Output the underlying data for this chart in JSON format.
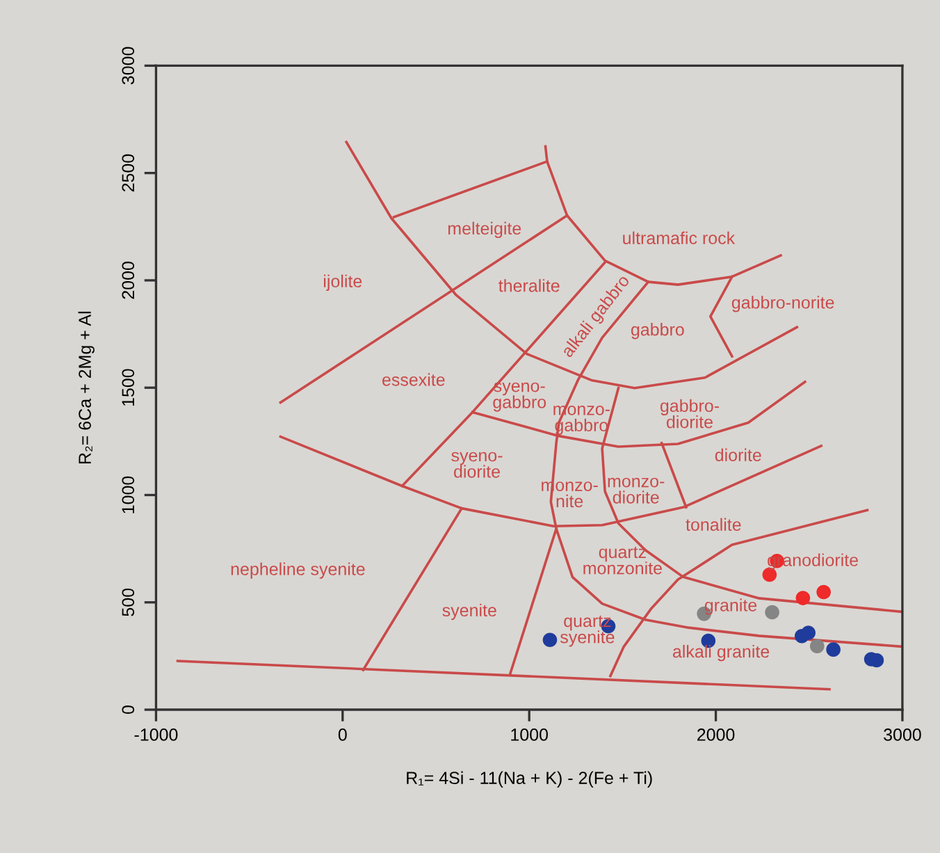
{
  "chart_data": {
    "type": "scatter",
    "xlabel": "R₁= 4Si - 11(Na + K) - 2(Fe + Ti)",
    "ylabel": "R₂= 6Ca + 2Mg + Al",
    "xlim": [
      -1000,
      3000
    ],
    "ylim": [
      0,
      3000
    ],
    "xticks": [
      -1000,
      0,
      1000,
      2000,
      3000
    ],
    "yticks": [
      0,
      500,
      1000,
      1500,
      2000,
      2500,
      3000
    ],
    "grid": false,
    "series": [
      {
        "type": "line",
        "color": "#c94a4a",
        "x": [
          20,
          261,
          609,
          986,
          1333,
          1565,
          1942,
          2435
        ],
        "values": [
          2644,
          2290,
          1931,
          1658,
          1535,
          1498,
          1547,
          1782
        ]
      },
      {
        "type": "line",
        "color": "#c94a4a",
        "x": [
          275,
          1096
        ],
        "values": [
          2295,
          2554
        ]
      },
      {
        "type": "line",
        "color": "#c94a4a",
        "x": [
          1087,
          1096,
          1203,
          1406,
          1638,
          1797,
          2087,
          2348
        ],
        "values": [
          2624,
          2554,
          2302,
          2092,
          1993,
          1980,
          2017,
          2116
        ]
      },
      {
        "type": "line",
        "color": "#c94a4a",
        "x": [
          -333,
          1203
        ],
        "values": [
          1431,
          2302
        ]
      },
      {
        "type": "line",
        "color": "#c94a4a",
        "x": [
          1406,
          696,
          319
        ],
        "values": [
          2084,
          1386,
          1042
        ]
      },
      {
        "type": "line",
        "color": "#c94a4a",
        "x": [
          1638,
          1391,
          1261,
          1159,
          1145,
          1116,
          1145,
          1232,
          1391,
          1623,
          1855,
          2232,
          3000
        ],
        "values": [
          1993,
          1733,
          1535,
          1337,
          1242,
          968,
          843,
          618,
          494,
          419,
          382,
          344,
          294
        ]
      },
      {
        "type": "line",
        "color": "#c94a4a",
        "x": [
          696,
          1159,
          1478,
          1797,
          2174,
          2478
        ],
        "values": [
          1386,
          1275,
          1225,
          1238,
          1337,
          1527
        ]
      },
      {
        "type": "line",
        "color": "#c94a4a",
        "x": [
          1478,
          1391,
          1406,
          1478,
          1623,
          1826,
          2232,
          3000
        ],
        "values": [
          1498,
          1217,
          1017,
          868,
          743,
          618,
          519,
          456
        ]
      },
      {
        "type": "line",
        "color": "#c94a4a",
        "x": [
          -333,
          319,
          638,
          1130,
          1391,
          1826,
          2565
        ],
        "values": [
          1272,
          1042,
          938,
          855,
          860,
          943,
          1229
        ]
      },
      {
        "type": "line",
        "color": "#c94a4a",
        "x": [
          1710,
          1841
        ],
        "values": [
          1242,
          943
        ]
      },
      {
        "type": "line",
        "color": "#c94a4a",
        "x": [
          1435,
          1507,
          1652,
          1797,
          2087,
          2812
        ],
        "values": [
          157,
          294,
          469,
          606,
          768,
          930
        ]
      },
      {
        "type": "line",
        "color": "#c94a4a",
        "x": [
          -884,
          2609
        ],
        "values": [
          227,
          95
        ]
      },
      {
        "type": "line",
        "color": "#c94a4a",
        "x": [
          110,
          638
        ],
        "values": [
          185,
          938
        ]
      },
      {
        "type": "line",
        "color": "#c94a4a",
        "x": [
          899,
          1145
        ],
        "values": [
          170,
          843
        ]
      },
      {
        "type": "line",
        "color": "#c94a4a",
        "x": [
          2087,
          1971,
          2087
        ],
        "values": [
          2017,
          1832,
          1646
        ]
      },
      {
        "marker": "circle",
        "color": "#ee2a2a",
        "x": [
          2288,
          2328,
          2467,
          2578
        ],
        "values": [
          629,
          693,
          520,
          548
        ]
      },
      {
        "marker": "circle",
        "color": "#858585",
        "x": [
          1937,
          2302,
          2543
        ],
        "values": [
          447,
          454,
          296
        ]
      },
      {
        "marker": "circle",
        "color": "#1f3c9c",
        "x": [
          1111,
          1424,
          1960,
          2461,
          2496,
          2630,
          2833,
          2862
        ],
        "values": [
          325,
          389,
          321,
          343,
          358,
          280,
          235,
          230
        ]
      }
    ],
    "annotations": [
      "melteigite",
      "ultramafic rock",
      "ijolite",
      "theralite",
      "alkali gabbro",
      "gabbro",
      "gabbro-norite",
      "essexite",
      "syeno-\ngabbro",
      "monzo-\ngabbro",
      "gabbro-\ndiorite",
      "syeno-\ndiorite",
      "monzo-\nnite",
      "monzo-\ndiorite",
      "diorite",
      "tonalite",
      "quartz\nmonzonite",
      "granodiorite",
      "nepheline syenite",
      "syenite",
      "granite",
      "quartz\nsyenite",
      "alkali granite"
    ]
  }
}
